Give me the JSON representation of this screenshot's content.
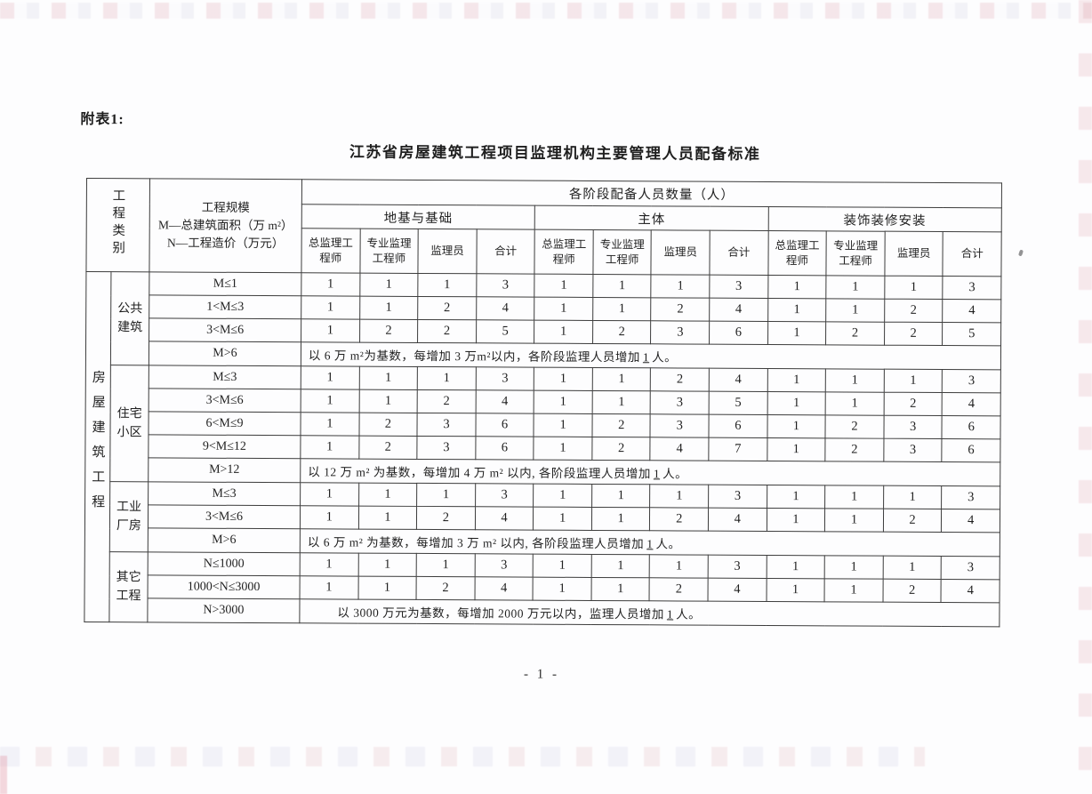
{
  "page": {
    "annex_label": "附表1:",
    "title": "江苏省房屋建筑工程项目监理机构主要管理人员配备标准",
    "page_number": "- 1 -"
  },
  "table": {
    "category_column_header": "工程类别",
    "scale_column_header_lines": [
      "工程规模",
      "M—总建筑面积（万 m²）",
      "N—工程造价（万元）"
    ],
    "staff_count_header": "各阶段配备人员数量（人）",
    "stage_headers": [
      "地基与基础",
      "主体",
      "装饰装修安装"
    ],
    "role_headers": [
      "总监理工程师",
      "专业监理工程师",
      "监理员",
      "合计"
    ],
    "category_label": "房屋建筑工程",
    "groups": [
      {
        "name": "公共建筑",
        "rows": [
          {
            "scale": "M≤1",
            "values": [
              1,
              1,
              1,
              3,
              1,
              1,
              1,
              3,
              1,
              1,
              1,
              3
            ]
          },
          {
            "scale": "1<M≤3",
            "values": [
              1,
              1,
              2,
              4,
              1,
              1,
              2,
              4,
              1,
              1,
              2,
              4
            ]
          },
          {
            "scale": "3<M≤6",
            "values": [
              1,
              2,
              2,
              5,
              1,
              2,
              3,
              6,
              1,
              2,
              2,
              5
            ]
          }
        ],
        "note_row": {
          "scale": "M>6",
          "text_before": "以 6 万 m²为基数，每增加 3 万m²以内，各阶段监理人员增加",
          "increment": "1",
          "text_after": "人。"
        }
      },
      {
        "name": "住宅小区",
        "rows": [
          {
            "scale": "M≤3",
            "values": [
              1,
              1,
              1,
              3,
              1,
              1,
              2,
              4,
              1,
              1,
              1,
              3
            ]
          },
          {
            "scale": "3<M≤6",
            "values": [
              1,
              1,
              2,
              4,
              1,
              1,
              3,
              5,
              1,
              1,
              2,
              4
            ]
          },
          {
            "scale": "6<M≤9",
            "values": [
              1,
              2,
              3,
              6,
              1,
              2,
              3,
              6,
              1,
              2,
              3,
              6
            ]
          },
          {
            "scale": "9<M≤12",
            "values": [
              1,
              2,
              3,
              6,
              1,
              2,
              4,
              7,
              1,
              2,
              3,
              6
            ]
          }
        ],
        "note_row": {
          "scale": "M>12",
          "text_before": "以 12 万 m² 为基数，每增加 4 万 m² 以内, 各阶段监理人员增加",
          "increment": "1",
          "text_after": "人。"
        }
      },
      {
        "name": "工业厂房",
        "rows": [
          {
            "scale": "M≤3",
            "values": [
              1,
              1,
              1,
              3,
              1,
              1,
              1,
              3,
              1,
              1,
              1,
              3
            ]
          },
          {
            "scale": "3<M≤6",
            "values": [
              1,
              1,
              2,
              4,
              1,
              1,
              2,
              4,
              1,
              1,
              2,
              4
            ]
          }
        ],
        "note_row": {
          "scale": "M>6",
          "text_before": "以 6 万 m² 为基数，每增加 3 万 m² 以内, 各阶段监理人员增加",
          "increment": "1",
          "text_after": "人。"
        }
      },
      {
        "name": "其它工程",
        "rows": [
          {
            "scale": "N≤1000",
            "values": [
              1,
              1,
              1,
              3,
              1,
              1,
              1,
              3,
              1,
              1,
              1,
              3
            ]
          },
          {
            "scale": "1000<N≤3000",
            "values": [
              1,
              1,
              2,
              4,
              1,
              1,
              2,
              4,
              1,
              1,
              2,
              4
            ]
          }
        ],
        "note_row": {
          "scale": "N>3000",
          "text_before": "以 3000 万元为基数，每增加 2000 万元以内，监理人员增加",
          "increment": "1",
          "text_after": "人。"
        }
      }
    ]
  }
}
